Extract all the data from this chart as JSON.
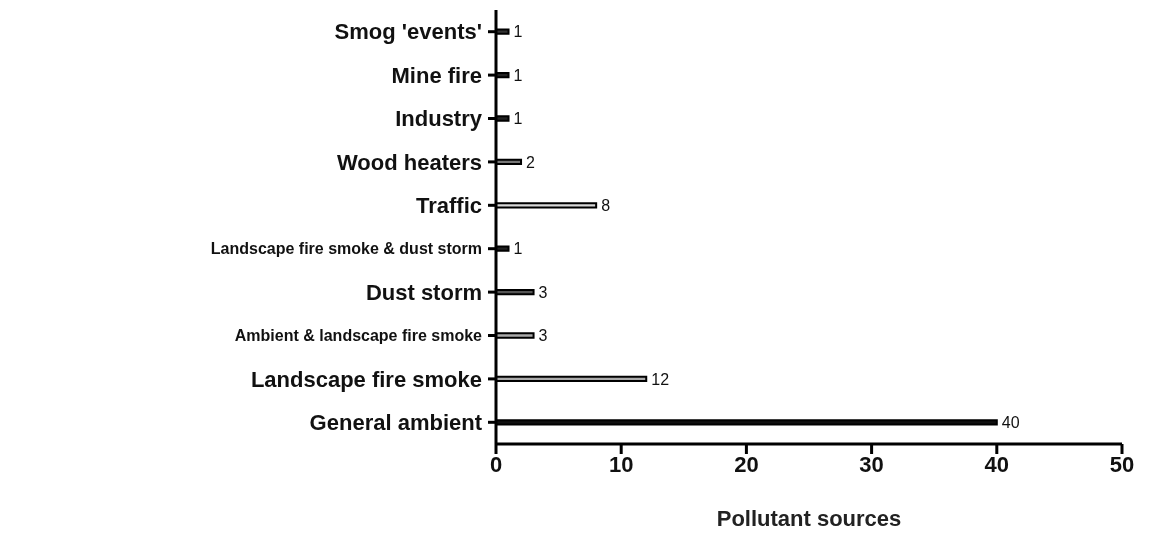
{
  "chart_data": {
    "type": "bar",
    "orientation": "horizontal",
    "xlabel": "Pollutant sources",
    "categories": [
      "Smog 'events'",
      "Mine fire",
      "Industry",
      "Wood heaters",
      "Traffic",
      "Landscape fire smoke & dust storm",
      "Dust storm",
      "Ambient & landscape fire smoke",
      "Landscape fire smoke",
      "General ambient"
    ],
    "values": [
      1,
      1,
      1,
      2,
      8,
      1,
      3,
      3,
      12,
      40
    ],
    "colors": [
      "#333333",
      "#222222",
      "#222222",
      "#777777",
      "#d9d9d9",
      "#222222",
      "#555555",
      "#aaaaaa",
      "#aaaaaa",
      "#111111"
    ],
    "xlim": [
      0,
      50
    ],
    "xticks": [
      0,
      10,
      20,
      30,
      40,
      50
    ],
    "data_labels": true,
    "grid": false,
    "legend": false
  }
}
